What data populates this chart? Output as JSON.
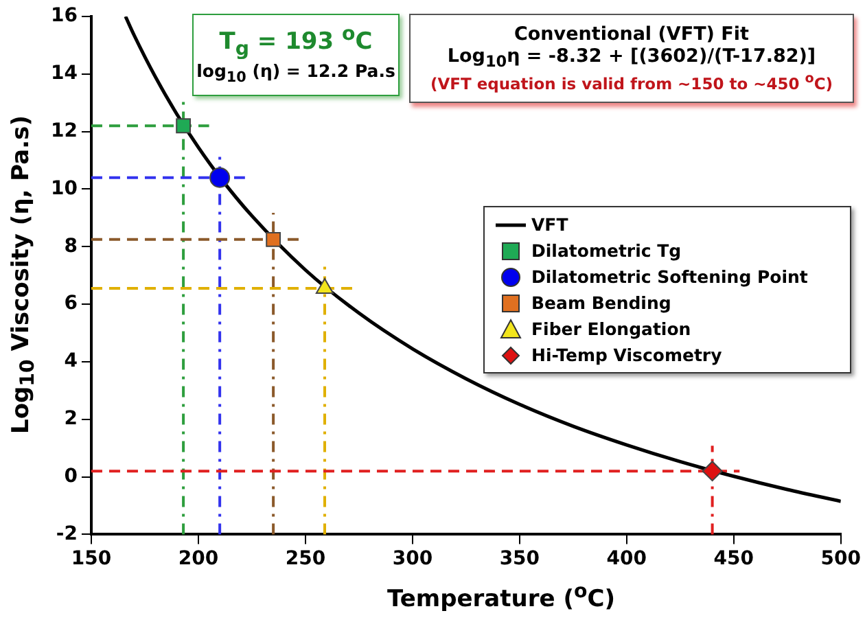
{
  "chart_data": {
    "type": "line",
    "xlabel": "Temperature ($^{o}$C)",
    "ylabel": "Log$_{10}$ Viscosity (η,  Pa.s)",
    "xlim": [
      150,
      500
    ],
    "xticks": [
      150,
      200,
      250,
      300,
      350,
      400,
      450,
      500
    ],
    "ylim": [
      -2,
      16
    ],
    "yticks": [
      -2,
      0,
      2,
      4,
      6,
      8,
      10,
      12,
      14,
      16
    ],
    "grid": false,
    "legend": "right",
    "series": [
      {
        "name": "VFT",
        "color": "#000000",
        "marker": "none",
        "line_style": "solid",
        "x": [
          166,
          170,
          180,
          190,
          200,
          210,
          225,
          250,
          275,
          300,
          325,
          350,
          375,
          400,
          425,
          450,
          475,
          500
        ],
        "values": [
          16.0,
          15.35,
          13.89,
          12.6,
          11.45,
          10.42,
          9.07,
          7.19,
          5.69,
          4.45,
          3.41,
          2.52,
          1.76,
          1.11,
          0.53,
          0.02,
          -0.44,
          -0.85
        ]
      },
      {
        "name": "Dilatometric Tg",
        "type": "scatter",
        "color": "#1faa55",
        "marker": "square",
        "x": [
          193
        ],
        "values": [
          12.2
        ]
      },
      {
        "name": "Dilatometric Softening Point",
        "type": "scatter",
        "color": "#0000ee",
        "marker": "circle",
        "x": [
          210
        ],
        "values": [
          10.4
        ]
      },
      {
        "name": "Beam Bending",
        "type": "scatter",
        "color": "#e07020",
        "marker": "square",
        "x": [
          235
        ],
        "values": [
          8.25
        ]
      },
      {
        "name": "Fiber Elongation",
        "type": "scatter",
        "color": "#f2e51c",
        "marker": "triangle",
        "x": [
          259
        ],
        "values": [
          6.55
        ]
      },
      {
        "name": "Hi-Temp Viscometry",
        "type": "scatter",
        "color": "#dd1111",
        "marker": "diamond",
        "x": [
          440
        ],
        "values": [
          0.2
        ]
      }
    ],
    "ref_lines": [
      {
        "axis": "y",
        "value": 12.2,
        "color": "#2e9e3e",
        "line_style": "dashed"
      },
      {
        "axis": "x",
        "value": 193,
        "color": "#2e9e3e",
        "line_style": "dashed"
      },
      {
        "axis": "y",
        "value": 10.4,
        "color": "#3333ee",
        "line_style": "dashed"
      },
      {
        "axis": "x",
        "value": 210,
        "color": "#3333ee",
        "line_style": "dashed"
      },
      {
        "axis": "y",
        "value": 8.25,
        "color": "#8b5a2b",
        "line_style": "dashed"
      },
      {
        "axis": "x",
        "value": 235,
        "color": "#8b5a2b",
        "line_style": "dashed"
      },
      {
        "axis": "y",
        "value": 6.55,
        "color": "#e0b000",
        "line_style": "dashed"
      },
      {
        "axis": "x",
        "value": 259,
        "color": "#e0b000",
        "line_style": "dashed"
      },
      {
        "axis": "y",
        "value": 0.2,
        "color": "#e02020",
        "line_style": "dashed"
      },
      {
        "axis": "x",
        "value": 440,
        "color": "#e02020",
        "line_style": "dashed"
      }
    ],
    "annotations": [
      "T$_{g}$ = 193 $^{o}$C",
      "log$_{10}$ (η) = 12.2 Pa.s",
      "Conventional (VFT) Fit",
      "Log$_{10}$η = -8.32 + [(3602)/(T-17.82)]",
      "(VFT equation is valid from ~150 to ~450 $^{o}$C)"
    ]
  }
}
